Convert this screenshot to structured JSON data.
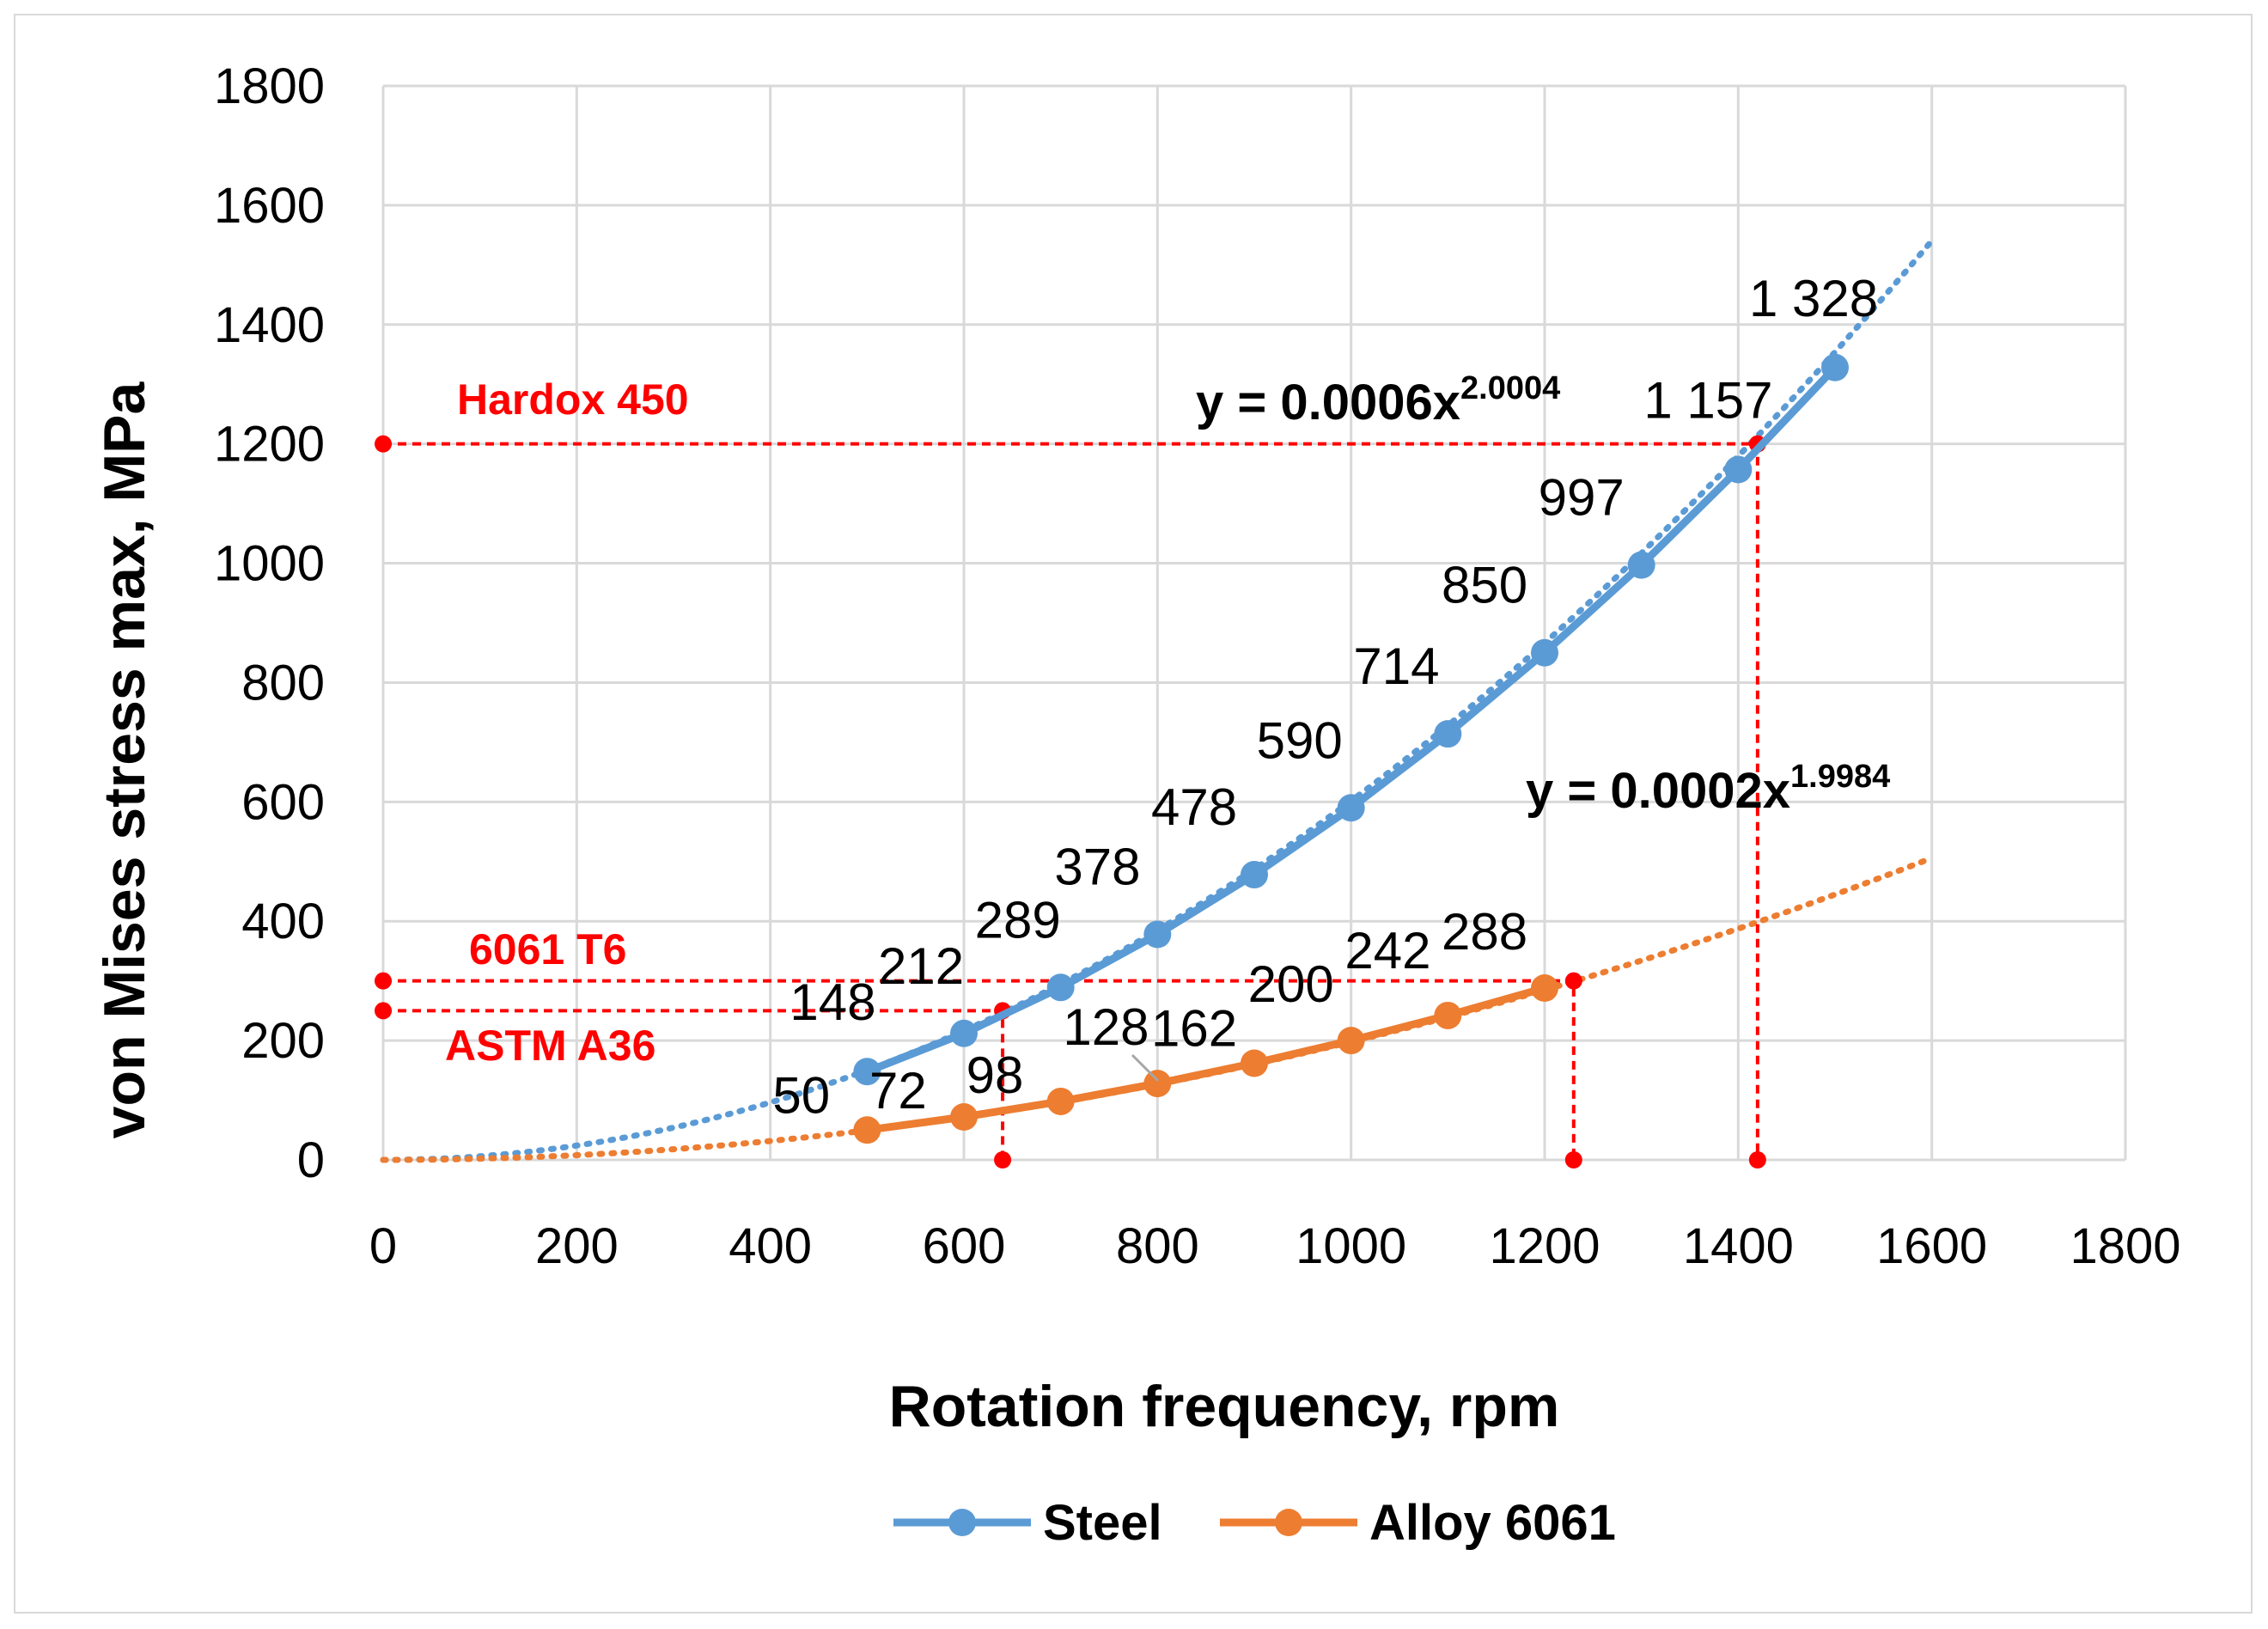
{
  "chart_data": {
    "type": "line",
    "xlabel": "Rotation frequency, rpm",
    "ylabel": "von Mises stress max, MPa",
    "xlim": [
      0,
      1800
    ],
    "ylim": [
      0,
      1800
    ],
    "xticks": [
      "0",
      "200",
      "400",
      "600",
      "800",
      "1000",
      "1200",
      "1400",
      "1600",
      "1800"
    ],
    "yticks": [
      "0",
      "200",
      "400",
      "600",
      "800",
      "1000",
      "1200",
      "1400",
      "1600",
      "1800"
    ],
    "grid": true,
    "legend_position": "bottom",
    "series": [
      {
        "name": "Steel",
        "color": "#5b9bd5",
        "x": [
          500,
          600,
          700,
          800,
          900,
          1000,
          1100,
          1200,
          1300,
          1400,
          1500
        ],
        "values": [
          148,
          212,
          289,
          378,
          478,
          590,
          714,
          850,
          997,
          1157,
          1328
        ],
        "labels": [
          "148",
          "212",
          "289",
          "378",
          "478",
          "590",
          "714",
          "850",
          "997",
          "1 157",
          "1 328"
        ],
        "trendline": {
          "coef": 0.0006,
          "exp": 2.0004,
          "x_range": [
            0,
            1600
          ],
          "equation_main": "y = 0.0006x",
          "equation_exp": "2.0004"
        }
      },
      {
        "name": "Alloy 6061",
        "color": "#ed7d31",
        "x": [
          500,
          600,
          700,
          800,
          900,
          1000,
          1100,
          1200
        ],
        "values": [
          50,
          72,
          98,
          128,
          162,
          200,
          242,
          288
        ],
        "labels": [
          "50",
          "72",
          "98",
          "128",
          "162",
          "200",
          "242",
          "288"
        ],
        "trendline": {
          "coef": 0.0002,
          "exp": 1.9984,
          "x_range": [
            0,
            1600
          ],
          "equation_main": "y = 0.0002x",
          "equation_exp": "1.9984"
        }
      }
    ],
    "reference_lines": [
      {
        "label": "Hardox 450",
        "stress": 1200,
        "rpm": 1420
      },
      {
        "label": "6061 T6",
        "stress": 300,
        "rpm": 1230
      },
      {
        "label": "ASTM A36",
        "stress": 250,
        "rpm": 640
      }
    ],
    "reference_color": "#ff0000"
  }
}
